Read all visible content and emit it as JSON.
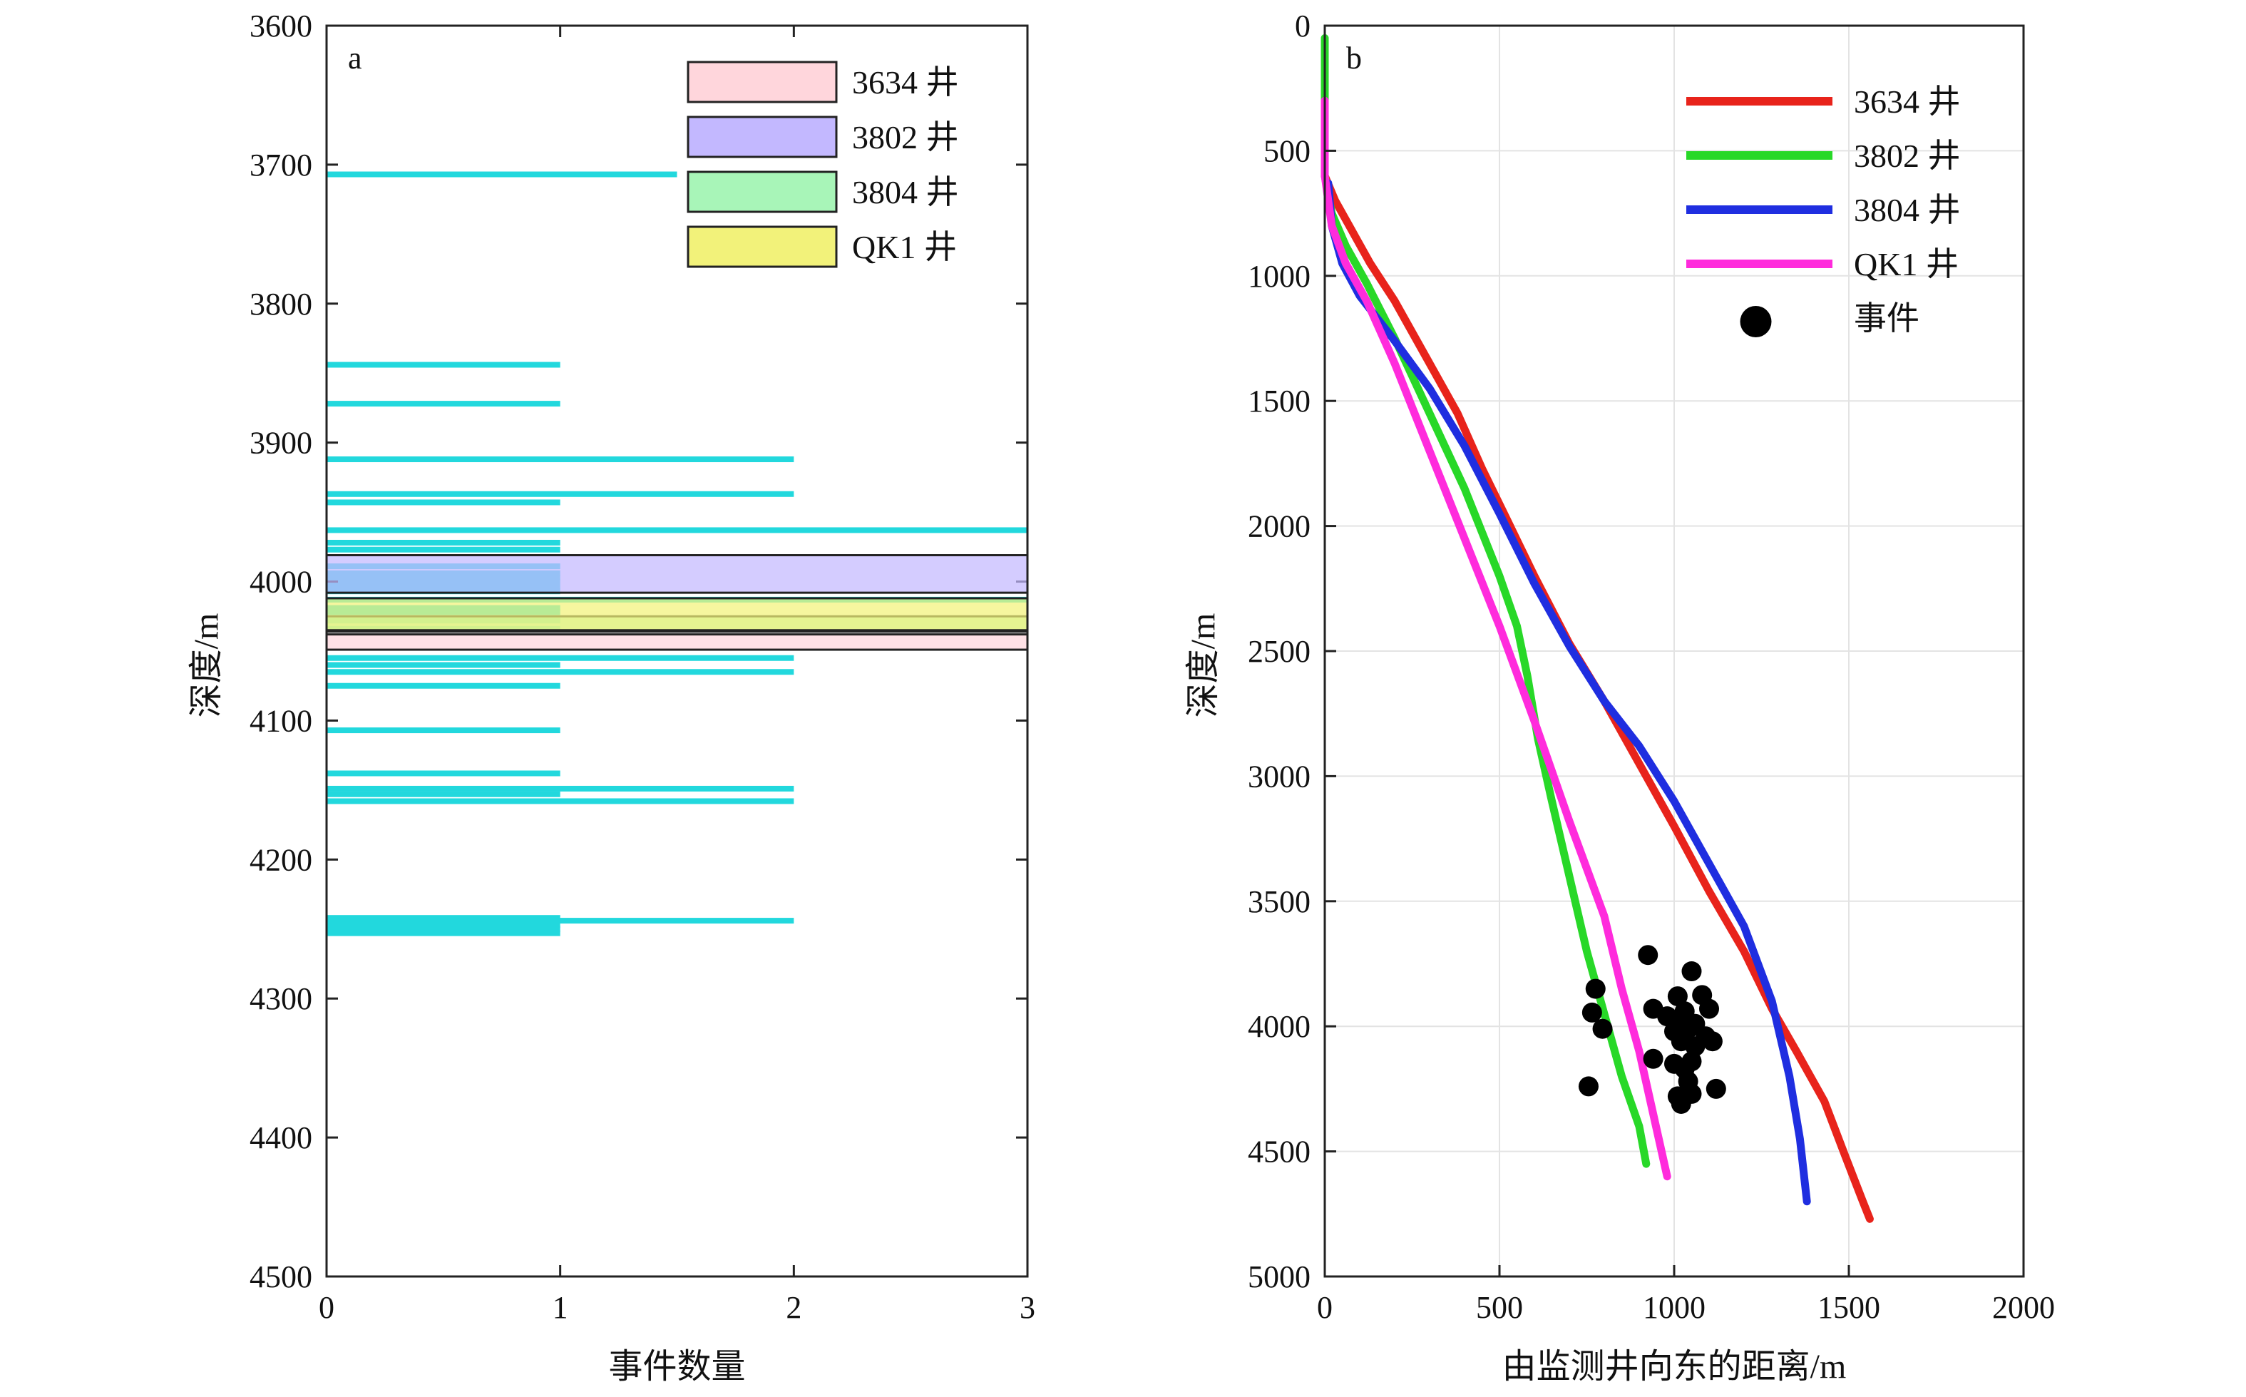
{
  "chart_data": [
    {
      "type": "bar",
      "orientation": "horizontal",
      "panel_label": "a",
      "xlabel": "事件数量",
      "ylabel": "深度/m",
      "xlim": [
        0,
        3
      ],
      "ylim": [
        3600,
        4500
      ],
      "y_inverted": true,
      "xticks": [
        "0",
        "1",
        "2",
        "3"
      ],
      "yticks": [
        "3600",
        "3700",
        "3800",
        "3900",
        "4000",
        "4100",
        "4200",
        "4300",
        "4400",
        "4500"
      ],
      "bar_color": "#22d8dd",
      "bars": [
        {
          "depth": 3707,
          "count": 1.5
        },
        {
          "depth": 3844,
          "count": 1
        },
        {
          "depth": 3872,
          "count": 1
        },
        {
          "depth": 3912,
          "count": 2
        },
        {
          "depth": 3937,
          "count": 2
        },
        {
          "depth": 3943,
          "count": 1
        },
        {
          "depth": 3963,
          "count": 3
        },
        {
          "depth": 3972,
          "count": 1
        },
        {
          "depth": 3977,
          "count": 1
        },
        {
          "depth": 3989,
          "count": 1
        },
        {
          "depth": 3994,
          "count": 1
        },
        {
          "depth": 3997,
          "count": 1
        },
        {
          "depth": 4000,
          "count": 1
        },
        {
          "depth": 4004,
          "count": 1
        },
        {
          "depth": 4007,
          "count": 1
        },
        {
          "depth": 4013,
          "count": 3
        },
        {
          "depth": 4019,
          "count": 1
        },
        {
          "depth": 4022,
          "count": 1
        },
        {
          "depth": 4028,
          "count": 1
        },
        {
          "depth": 4034,
          "count": 1
        },
        {
          "depth": 4055,
          "count": 2
        },
        {
          "depth": 4060,
          "count": 1
        },
        {
          "depth": 4065,
          "count": 2
        },
        {
          "depth": 4075,
          "count": 1
        },
        {
          "depth": 4107,
          "count": 1
        },
        {
          "depth": 4138,
          "count": 1
        },
        {
          "depth": 4149,
          "count": 2
        },
        {
          "depth": 4153,
          "count": 1
        },
        {
          "depth": 4158,
          "count": 2
        },
        {
          "depth": 4242,
          "count": 1
        },
        {
          "depth": 4244,
          "count": 2
        },
        {
          "depth": 4247,
          "count": 1
        },
        {
          "depth": 4250,
          "count": 1
        },
        {
          "depth": 4253,
          "count": 1
        }
      ],
      "zones": [
        {
          "name": "3634 井",
          "top": 4038,
          "bottom": 4049,
          "color": "#ffd6dc"
        },
        {
          "name": "3802 井",
          "top": 3981,
          "bottom": 4008,
          "color": "#c3b8ff"
        },
        {
          "name": "3804 井",
          "top": 4025,
          "bottom": 4036,
          "color": "#a8f5b8"
        },
        {
          "name": "QK1 井",
          "top": 4012,
          "bottom": 4035,
          "color": "#f2f27a"
        }
      ],
      "legend": [
        {
          "label": "3634 井",
          "color": "#ffd6dc"
        },
        {
          "label": "3802 井",
          "color": "#c3b8ff"
        },
        {
          "label": "3804 井",
          "color": "#a8f5b8"
        },
        {
          "label": "QK1 井",
          "color": "#f2f27a"
        }
      ],
      "legend_position": "top-right",
      "grid": false
    },
    {
      "type": "line",
      "panel_label": "b",
      "xlabel": "由监测井向东的距离/m",
      "ylabel": "深度/m",
      "xlim": [
        0,
        2000
      ],
      "ylim": [
        0,
        5000
      ],
      "y_inverted": true,
      "xticks": [
        "0",
        "500",
        "1000",
        "1500",
        "2000"
      ],
      "yticks": [
        "0",
        "500",
        "1000",
        "1500",
        "2000",
        "2500",
        "3000",
        "3500",
        "4000",
        "4500",
        "5000"
      ],
      "grid": true,
      "legend_position": "top-right",
      "series": [
        {
          "name": "3634 井",
          "color": "#e8231b",
          "points": [
            [
              0,
              600
            ],
            [
              30,
              700
            ],
            [
              70,
              800
            ],
            [
              130,
              950
            ],
            [
              200,
              1100
            ],
            [
              300,
              1350
            ],
            [
              380,
              1550
            ],
            [
              450,
              1770
            ],
            [
              520,
              1970
            ],
            [
              600,
              2200
            ],
            [
              700,
              2470
            ],
            [
              800,
              2700
            ],
            [
              900,
              2950
            ],
            [
              1000,
              3200
            ],
            [
              1100,
              3460
            ],
            [
              1200,
              3700
            ],
            [
              1280,
              3930
            ],
            [
              1350,
              4100
            ],
            [
              1430,
              4300
            ],
            [
              1490,
              4520
            ],
            [
              1540,
              4700
            ],
            [
              1560,
              4770
            ]
          ]
        },
        {
          "name": "3802 井",
          "color": "#28d828",
          "points": [
            [
              0,
              50
            ],
            [
              0,
              300
            ],
            [
              0,
              600
            ],
            [
              20,
              750
            ],
            [
              60,
              880
            ],
            [
              120,
              1030
            ],
            [
              200,
              1250
            ],
            [
              300,
              1550
            ],
            [
              400,
              1850
            ],
            [
              500,
              2200
            ],
            [
              550,
              2400
            ],
            [
              580,
              2600
            ],
            [
              610,
              2850
            ],
            [
              650,
              3100
            ],
            [
              700,
              3400
            ],
            [
              750,
              3700
            ],
            [
              800,
              3950
            ],
            [
              850,
              4200
            ],
            [
              900,
              4400
            ],
            [
              920,
              4550
            ]
          ]
        },
        {
          "name": "3804 井",
          "color": "#1f2ee0",
          "points": [
            [
              10,
              630
            ],
            [
              20,
              800
            ],
            [
              50,
              950
            ],
            [
              100,
              1080
            ],
            [
              200,
              1260
            ],
            [
              300,
              1450
            ],
            [
              400,
              1680
            ],
            [
              500,
              1950
            ],
            [
              600,
              2230
            ],
            [
              700,
              2480
            ],
            [
              800,
              2700
            ],
            [
              900,
              2880
            ],
            [
              1000,
              3100
            ],
            [
              1100,
              3350
            ],
            [
              1200,
              3600
            ],
            [
              1280,
              3900
            ],
            [
              1330,
              4200
            ],
            [
              1360,
              4450
            ],
            [
              1380,
              4700
            ]
          ]
        },
        {
          "name": "QK1 井",
          "color": "#ff2bdc",
          "points": [
            [
              0,
              300
            ],
            [
              0,
              600
            ],
            [
              20,
              800
            ],
            [
              60,
              950
            ],
            [
              120,
              1100
            ],
            [
              200,
              1350
            ],
            [
              300,
              1700
            ],
            [
              400,
              2050
            ],
            [
              500,
              2400
            ],
            [
              600,
              2780
            ],
            [
              700,
              3180
            ],
            [
              800,
              3560
            ],
            [
              850,
              3850
            ],
            [
              900,
              4100
            ],
            [
              940,
              4350
            ],
            [
              980,
              4600
            ]
          ]
        }
      ],
      "events": {
        "name": "事件",
        "color": "#000000",
        "points": [
          [
            925,
            3715
          ],
          [
            1050,
            3780
          ],
          [
            775,
            3850
          ],
          [
            1010,
            3880
          ],
          [
            1080,
            3875
          ],
          [
            940,
            3930
          ],
          [
            1030,
            3940
          ],
          [
            1100,
            3930
          ],
          [
            980,
            3960
          ],
          [
            1020,
            3970
          ],
          [
            1060,
            3990
          ],
          [
            765,
            3945
          ],
          [
            795,
            4010
          ],
          [
            1000,
            4020
          ],
          [
            1040,
            4010
          ],
          [
            1090,
            4040
          ],
          [
            1020,
            4060
          ],
          [
            1110,
            4060
          ],
          [
            1060,
            4080
          ],
          [
            940,
            4130
          ],
          [
            1000,
            4150
          ],
          [
            1050,
            4140
          ],
          [
            1030,
            4170
          ],
          [
            1040,
            4220
          ],
          [
            1120,
            4250
          ],
          [
            755,
            4240
          ],
          [
            1050,
            4270
          ],
          [
            1020,
            4310
          ],
          [
            1010,
            4280
          ]
        ]
      },
      "legend": [
        {
          "label": "3634 井",
          "color": "#e8231b",
          "kind": "line"
        },
        {
          "label": "3802 井",
          "color": "#28d828",
          "kind": "line"
        },
        {
          "label": "3804 井",
          "color": "#1f2ee0",
          "kind": "line"
        },
        {
          "label": "QK1 井",
          "color": "#ff2bdc",
          "kind": "line"
        },
        {
          "label": "事件",
          "color": "#000000",
          "kind": "marker"
        }
      ]
    }
  ]
}
